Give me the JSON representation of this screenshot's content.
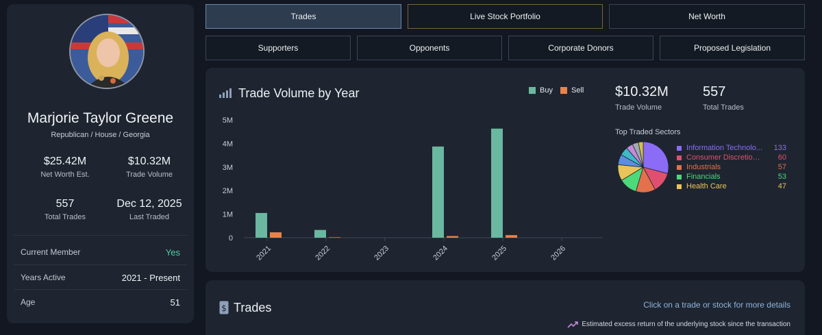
{
  "profile": {
    "name": "Marjorie Taylor Greene",
    "affiliation": "Republican / House / Georgia",
    "net_worth": "$25.42M",
    "net_worth_label": "Net Worth Est.",
    "trade_volume": "$10.32M",
    "trade_volume_label": "Trade Volume",
    "total_trades": "557",
    "total_trades_label": "Total Trades",
    "last_traded": "Dec 12, 2025",
    "last_traded_label": "Last Traded",
    "rows": [
      {
        "key": "Current Member",
        "value": "Yes"
      },
      {
        "key": "Years Active",
        "value": "2021 - Present"
      },
      {
        "key": "Age",
        "value": "51"
      }
    ]
  },
  "tabs": {
    "row1": [
      "Trades",
      "Live Stock Portfolio",
      "Net Worth"
    ],
    "row2": [
      "Supporters",
      "Opponents",
      "Corporate Donors",
      "Proposed Legislation"
    ]
  },
  "chart_panel": {
    "title": "Trade Volume by Year",
    "legend_buy": "Buy",
    "legend_sell": "Sell",
    "summary_volume": "$10.32M",
    "summary_volume_label": "Trade Volume",
    "summary_trades": "557",
    "summary_trades_label": "Total Trades",
    "sectors_title": "Top Traded Sectors",
    "sectors": [
      {
        "name": "Information Technolo...",
        "count": "133",
        "color": "#8b6cf6"
      },
      {
        "name": "Consumer Discretiona...",
        "count": "60",
        "color": "#e0506e"
      },
      {
        "name": "Industrials",
        "count": "57",
        "color": "#e2714c"
      },
      {
        "name": "Financials",
        "count": "53",
        "color": "#4cd97a"
      },
      {
        "name": "Health Care",
        "count": "47",
        "color": "#e8c45a"
      }
    ]
  },
  "chart_data": {
    "type": "bar",
    "title": "Trade Volume by Year",
    "categories": [
      "2021",
      "2022",
      "2023",
      "2024",
      "2025",
      "2026"
    ],
    "series": [
      {
        "name": "Buy",
        "color": "#6ab8a0",
        "values": [
          1050000,
          330000,
          0,
          3870000,
          4630000,
          0
        ]
      },
      {
        "name": "Sell",
        "color": "#e8834a",
        "values": [
          230000,
          20000,
          0,
          70000,
          110000,
          0
        ]
      }
    ],
    "yticks": [
      "0",
      "1M",
      "2M",
      "3M",
      "4M",
      "5M"
    ],
    "ylim": [
      0,
      5000000
    ],
    "legend": "top-right"
  },
  "pie_data": {
    "type": "pie",
    "values": [
      133,
      60,
      57,
      53,
      47,
      30,
      25,
      20,
      18,
      14
    ],
    "colors": [
      "#8b6cf6",
      "#e0506e",
      "#e2714c",
      "#4cd97a",
      "#e8c45a",
      "#5b8ee0",
      "#3fb8c8",
      "#c58ad8",
      "#a0a8b4",
      "#d6c04a"
    ]
  },
  "trades_panel": {
    "title": "Trades",
    "hint": "Click on a trade or stock for more details",
    "note": "Estimated excess return of the underlying stock since the transaction"
  },
  "colors": {
    "accent": "#6d88a8",
    "buy": "#6ab8a0",
    "sell": "#e8834a",
    "member_yes": "#4ccfa0"
  }
}
